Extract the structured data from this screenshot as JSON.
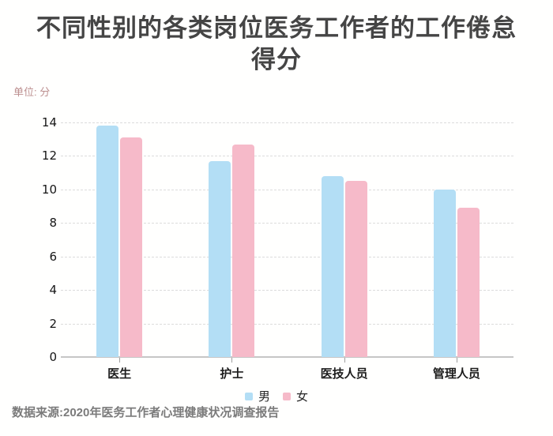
{
  "title": {
    "line1": "不同性别的各类岗位医务工作者的工作倦怠",
    "line2": "得分"
  },
  "unit_label": "单位: 分",
  "source_note": "数据来源:2020年医务工作者心理健康状况调查报告",
  "colors": {
    "male_bar": "#b3def5",
    "female_bar": "#f6bac9",
    "title_text": "#454545",
    "unit_text": "#bc8f8f",
    "grid": "#dcdcdc",
    "axis": "#c6c6c6",
    "source_text": "#7b7b7b"
  },
  "chart_data": {
    "type": "bar",
    "title": "不同性别的各类岗位医务工作者的工作倦怠得分",
    "unit": "单位: 分",
    "categories": [
      "医生",
      "护士",
      "医技人员",
      "管理人员"
    ],
    "series": [
      {
        "name": "男",
        "color": "#b3def5",
        "values": [
          13.8,
          11.7,
          10.8,
          10.0
        ]
      },
      {
        "name": "女",
        "color": "#f6bac9",
        "values": [
          13.1,
          12.7,
          10.5,
          8.9
        ]
      }
    ],
    "xlabel": "",
    "ylabel": "分",
    "ylim": [
      0,
      14
    ],
    "ytick_step": 2,
    "grid": true,
    "grid_style": "dashed",
    "legend_position": "bottom",
    "source": "数据来源:2020年医务工作者心理健康状况调查报告"
  }
}
